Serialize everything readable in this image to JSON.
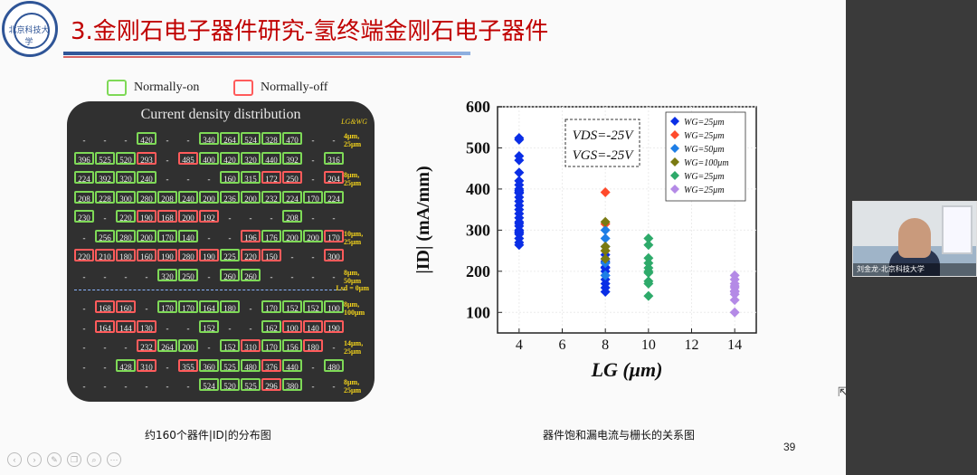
{
  "slide": {
    "title": "3.金刚石电子器件研究-氢终端金刚石电子器件",
    "logo_text": "北京科技大学",
    "page_number": "39",
    "left_caption": "约160个器件|ID|的分布图",
    "right_caption": "器件饱和漏电流与栅长的关系图"
  },
  "legend": {
    "on": {
      "label": "Normally-on",
      "color": "#7ed957"
    },
    "off": {
      "label": "Normally-off",
      "color": "#ff5b5b"
    }
  },
  "heatmap": {
    "title": "Current density distribution",
    "lg_wg_label": "LG&WG",
    "lsd_label": "Lsd = 0μm",
    "row_labels": [
      {
        "text": "4μm, 25μm",
        "row": 0
      },
      {
        "text": "8μm, 25μm",
        "row": 2
      },
      {
        "text": "10μm, 25μm",
        "row": 5
      },
      {
        "text": "8μm, 50μm",
        "row": 7
      },
      {
        "text": "8μm, 100μm",
        "row": 8
      },
      {
        "text": "14μm, 25μm",
        "row": 10
      },
      {
        "text": "8μm, 25μm",
        "row": 12
      },
      {
        "text": "4μm, 25μm",
        "row": 14
      }
    ],
    "rows": [
      [
        [
          "-",
          ""
        ],
        [
          "-",
          ""
        ],
        [
          "-",
          ""
        ],
        [
          "420",
          "g"
        ],
        [
          "-",
          ""
        ],
        [
          "-",
          ""
        ],
        [
          "340",
          "g"
        ],
        [
          "264",
          "g"
        ],
        [
          "524",
          "g"
        ],
        [
          "328",
          "g"
        ],
        [
          "470",
          "g"
        ],
        [
          "-",
          ""
        ],
        [
          "-",
          ""
        ]
      ],
      [
        [
          "396",
          "g"
        ],
        [
          "525",
          "g"
        ],
        [
          "520",
          "g"
        ],
        [
          "293",
          "r"
        ],
        [
          "-",
          ""
        ],
        [
          "485",
          "r"
        ],
        [
          "400",
          "g"
        ],
        [
          "420",
          "g"
        ],
        [
          "320",
          "g"
        ],
        [
          "440",
          "g"
        ],
        [
          "392",
          "g"
        ],
        [
          "-",
          ""
        ],
        [
          "316",
          "g"
        ]
      ],
      [
        [
          "224",
          "g"
        ],
        [
          "392",
          "g"
        ],
        [
          "320",
          "g"
        ],
        [
          "240",
          "g"
        ],
        [
          "-",
          ""
        ],
        [
          "-",
          ""
        ],
        [
          "-",
          ""
        ],
        [
          "160",
          "g"
        ],
        [
          "315",
          "g"
        ],
        [
          "172",
          "r"
        ],
        [
          "250",
          "r"
        ],
        [
          "-",
          ""
        ],
        [
          "204",
          "r"
        ]
      ],
      [
        [
          "208",
          "g"
        ],
        [
          "228",
          "g"
        ],
        [
          "300",
          "g"
        ],
        [
          "280",
          "g"
        ],
        [
          "208",
          "g"
        ],
        [
          "240",
          "g"
        ],
        [
          "200",
          "g"
        ],
        [
          "236",
          "g"
        ],
        [
          "200",
          "g"
        ],
        [
          "232",
          "g"
        ],
        [
          "224",
          "g"
        ],
        [
          "170",
          "g"
        ],
        [
          "224",
          "g"
        ]
      ],
      [
        [
          "230",
          "g"
        ],
        [
          "-",
          ""
        ],
        [
          "220",
          "g"
        ],
        [
          "190",
          "r"
        ],
        [
          "168",
          "r"
        ],
        [
          "200",
          "r"
        ],
        [
          "192",
          "r"
        ],
        [
          "-",
          ""
        ],
        [
          "-",
          ""
        ],
        [
          "-",
          ""
        ],
        [
          "208",
          "g"
        ],
        [
          "-",
          ""
        ],
        [
          "-",
          ""
        ]
      ],
      [
        [
          "-",
          ""
        ],
        [
          "256",
          "g"
        ],
        [
          "280",
          "g"
        ],
        [
          "200",
          "g"
        ],
        [
          "170",
          "g"
        ],
        [
          "140",
          "g"
        ],
        [
          "-",
          ""
        ],
        [
          "-",
          ""
        ],
        [
          "196",
          "r"
        ],
        [
          "176",
          "g"
        ],
        [
          "200",
          "g"
        ],
        [
          "200",
          "g"
        ],
        [
          "170",
          "r"
        ]
      ],
      [
        [
          "220",
          "r"
        ],
        [
          "210",
          "r"
        ],
        [
          "180",
          "r"
        ],
        [
          "160",
          "r"
        ],
        [
          "190",
          "r"
        ],
        [
          "280",
          "r"
        ],
        [
          "190",
          "r"
        ],
        [
          "225",
          "g"
        ],
        [
          "220",
          "r"
        ],
        [
          "150",
          "r"
        ],
        [
          "-",
          ""
        ],
        [
          "-",
          ""
        ],
        [
          "300",
          "r"
        ]
      ],
      [
        [
          "-",
          ""
        ],
        [
          "-",
          ""
        ],
        [
          "-",
          ""
        ],
        [
          "-",
          ""
        ],
        [
          "320",
          "g"
        ],
        [
          "250",
          "g"
        ],
        [
          "-",
          ""
        ],
        [
          "260",
          "g"
        ],
        [
          "260",
          "g"
        ],
        [
          "-",
          ""
        ],
        [
          "-",
          ""
        ],
        [
          "-",
          ""
        ],
        [
          "-",
          ""
        ]
      ],
      [
        [
          "-",
          ""
        ],
        [
          "168",
          "r"
        ],
        [
          "160",
          "r"
        ],
        [
          "-",
          ""
        ],
        [
          "170",
          "g"
        ],
        [
          "170",
          "g"
        ],
        [
          "164",
          "g"
        ],
        [
          "180",
          "g"
        ],
        [
          "-",
          ""
        ],
        [
          "170",
          "g"
        ],
        [
          "152",
          "g"
        ],
        [
          "152",
          "g"
        ],
        [
          "100",
          "g"
        ]
      ],
      [
        [
          "-",
          ""
        ],
        [
          "164",
          "r"
        ],
        [
          "144",
          "r"
        ],
        [
          "130",
          "r"
        ],
        [
          "-",
          ""
        ],
        [
          "-",
          ""
        ],
        [
          "152",
          "g"
        ],
        [
          "-",
          ""
        ],
        [
          "-",
          ""
        ],
        [
          "162",
          "g"
        ],
        [
          "100",
          "r"
        ],
        [
          "140",
          "r"
        ],
        [
          "190",
          "r"
        ]
      ],
      [
        [
          "-",
          ""
        ],
        [
          "-",
          ""
        ],
        [
          "-",
          ""
        ],
        [
          "232",
          "r"
        ],
        [
          "264",
          "g"
        ],
        [
          "200",
          "g"
        ],
        [
          "-",
          ""
        ],
        [
          "152",
          "g"
        ],
        [
          "310",
          "r"
        ],
        [
          "170",
          "g"
        ],
        [
          "156",
          "g"
        ],
        [
          "180",
          "r"
        ],
        [
          "-",
          ""
        ]
      ],
      [
        [
          "-",
          ""
        ],
        [
          "-",
          ""
        ],
        [
          "428",
          "g"
        ],
        [
          "310",
          "r"
        ],
        [
          "-",
          ""
        ],
        [
          "355",
          "r"
        ],
        [
          "360",
          "g"
        ],
        [
          "525",
          "g"
        ],
        [
          "480",
          "g"
        ],
        [
          "376",
          "r"
        ],
        [
          "440",
          "g"
        ],
        [
          "-",
          ""
        ],
        [
          "480",
          "g"
        ]
      ],
      [
        [
          "-",
          ""
        ],
        [
          "-",
          ""
        ],
        [
          "-",
          ""
        ],
        [
          "-",
          ""
        ],
        [
          "-",
          ""
        ],
        [
          "-",
          ""
        ],
        [
          "524",
          "g"
        ],
        [
          "520",
          "g"
        ],
        [
          "525",
          "g"
        ],
        [
          "296",
          "r"
        ],
        [
          "380",
          "g"
        ],
        [
          "-",
          ""
        ],
        [
          "-",
          ""
        ]
      ]
    ]
  },
  "chart_data": {
    "type": "scatter",
    "title": "",
    "xlabel": "LG (μm)",
    "ylabel": "|ID| (mA/mm)",
    "xlim": [
      3,
      15
    ],
    "ylim": [
      50,
      600
    ],
    "xticks": [
      4,
      6,
      8,
      10,
      12,
      14
    ],
    "yticks": [
      100,
      200,
      300,
      400,
      500,
      600
    ],
    "annotation": [
      "VDS=-25V",
      "VGS=-25V"
    ],
    "legend_position": "top-right",
    "series": [
      {
        "name": "WG=25μm",
        "color": "#0a2ee6",
        "x": [
          4,
          4,
          4,
          4,
          4,
          4,
          4,
          4,
          4,
          4,
          4,
          4,
          4,
          4,
          4,
          4,
          4,
          4,
          4,
          4,
          4,
          4,
          4,
          4,
          4,
          4,
          4,
          8,
          8,
          8,
          8,
          8,
          8,
          8,
          8,
          8,
          8,
          8,
          8
        ],
        "y": [
          524,
          520,
          480,
          470,
          440,
          420,
          410,
          400,
          396,
          392,
          390,
          380,
          370,
          360,
          350,
          340,
          330,
          320,
          316,
          310,
          300,
          296,
          294,
          290,
          280,
          270,
          264,
          240,
          230,
          224,
          220,
          210,
          208,
          200,
          190,
          180,
          170,
          160,
          150
        ]
      },
      {
        "name": "WG=25μm",
        "color": "#ff4a2b",
        "x": [
          8,
          8,
          8
        ],
        "y": [
          392,
          315,
          250
        ]
      },
      {
        "name": "WG=50μm",
        "color": "#1e7ee6",
        "x": [
          8,
          8,
          8,
          8,
          8
        ],
        "y": [
          300,
          280,
          260,
          220,
          190
        ]
      },
      {
        "name": "WG=100μm",
        "color": "#7a7a12",
        "x": [
          8,
          8,
          8,
          8
        ],
        "y": [
          320,
          260,
          250,
          230
        ]
      },
      {
        "name": "WG=25μm",
        "color": "#2eaa6a",
        "x": [
          10,
          10,
          10,
          10,
          10,
          10,
          10,
          10,
          10,
          10
        ],
        "y": [
          280,
          264,
          232,
          220,
          208,
          200,
          196,
          176,
          170,
          140
        ]
      },
      {
        "name": "WG=25μm",
        "color": "#b48ae6",
        "x": [
          14,
          14,
          14,
          14,
          14,
          14,
          14,
          14,
          14,
          14
        ],
        "y": [
          190,
          180,
          170,
          164,
          160,
          152,
          150,
          144,
          130,
          100
        ]
      }
    ]
  },
  "video": {
    "name": "刘金龙-北京科技大学"
  },
  "toolbar": {
    "icons": [
      "prev-icon",
      "next-icon",
      "pen-icon",
      "copy-icon",
      "zoom-icon",
      "more-icon"
    ]
  }
}
